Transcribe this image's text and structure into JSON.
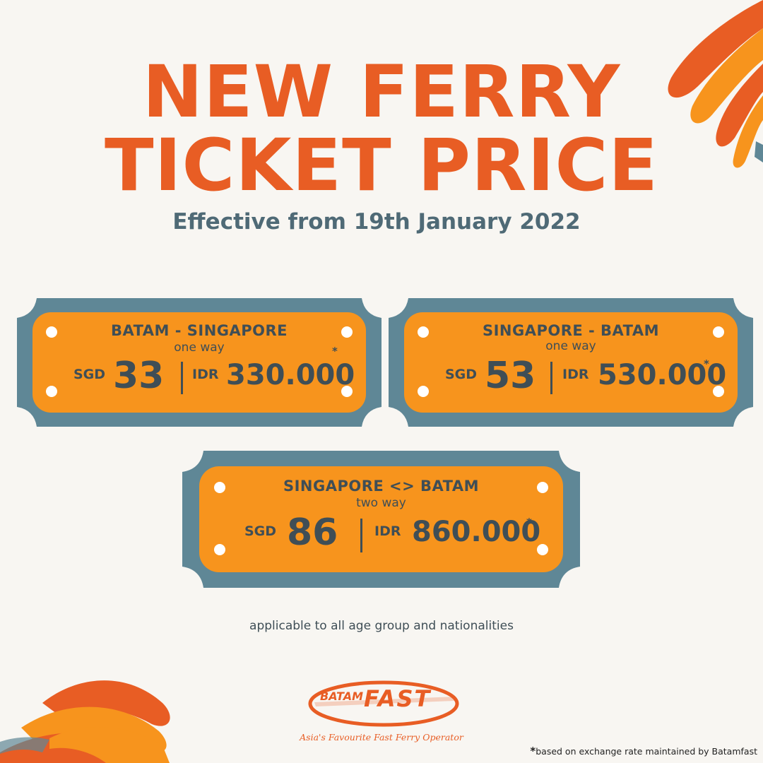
{
  "title_line1": "NEW FERRY",
  "title_line2": "TICKET PRICE",
  "subtitle": "Effective from 19th January 2022",
  "tickets": [
    {
      "route": "BATAM - SINGAPORE",
      "trip": "one way",
      "sgd_label": "SGD",
      "sgd_amount": "33",
      "idr_label": "IDR",
      "idr_amount": "330.000",
      "asterisk": "*"
    },
    {
      "route": "SINGAPORE - BATAM",
      "trip": "one way",
      "sgd_label": "SGD",
      "sgd_amount": "53",
      "idr_label": "IDR",
      "idr_amount": "530.000",
      "asterisk": "*"
    },
    {
      "route": "SINGAPORE <> BATAM",
      "trip": "two way",
      "sgd_label": "SGD",
      "sgd_amount": "86",
      "idr_label": "IDR",
      "idr_amount": "860.000",
      "asterisk": "*"
    }
  ],
  "note": "applicable to all age group and nationalities",
  "logo": {
    "word1": "BATAM",
    "word2": "FAST",
    "tagline": "Asia's Favourite Fast Ferry Operator"
  },
  "footnote": {
    "marker": "*",
    "text": "based on exchange rate maintained by Batamfast"
  },
  "colors": {
    "accent": "#e85d24",
    "ticket_frame": "#5f8796",
    "ticket_fill": "#f7941d",
    "text_dark": "#3f4e56",
    "subtitle": "#4f6a76",
    "background": "#f8f6f2"
  }
}
